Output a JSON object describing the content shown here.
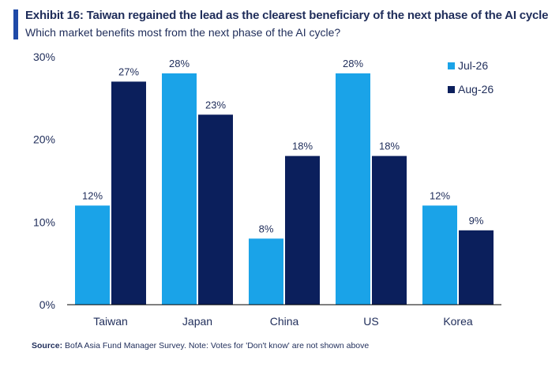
{
  "header": {
    "title": "Exhibit 16: Taiwan regained the lead as the clearest beneficiary of the next phase of the AI cycle",
    "subtitle": "Which market benefits most from the next phase of the AI cycle?"
  },
  "footer": {
    "source_label": "Source:",
    "source_text": " BofA Asia Fund Manager Survey. Note: Votes for 'Don't know' are not shown above"
  },
  "colors": {
    "series_1": "#1aa3e8",
    "series_2": "#0b1f5c",
    "accent": "#1f4aa8"
  },
  "chart_data": {
    "type": "bar",
    "categories": [
      "Taiwan",
      "Japan",
      "China",
      "US",
      "Korea"
    ],
    "series": [
      {
        "name": "Jul-26",
        "values": [
          12,
          28,
          8,
          28,
          12
        ],
        "labels": [
          "12%",
          "28%",
          "8%",
          "28%",
          "12%"
        ]
      },
      {
        "name": "Aug-26",
        "values": [
          27,
          23,
          18,
          18,
          9
        ],
        "labels": [
          "27%",
          "23%",
          "18%",
          "18%",
          "9%"
        ]
      }
    ],
    "yticks": [
      0,
      10,
      20,
      30
    ],
    "ytick_labels": [
      "0%",
      "10%",
      "20%",
      "30%"
    ],
    "ylim": [
      0,
      30
    ],
    "legend_position": "top-right",
    "grid": false
  }
}
